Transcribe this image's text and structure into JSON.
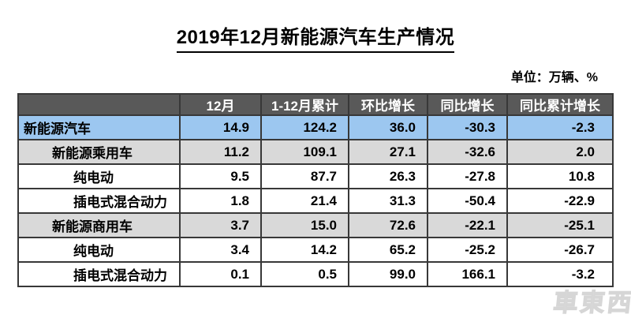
{
  "title": "2019年12月新能源汽车生产情况",
  "unit_label": "单位：万辆、%",
  "watermark": "車東西",
  "colors": {
    "header_bg": "#595959",
    "header_text": "#ffffff",
    "row_highlight_blue": "#9cc7f0",
    "row_highlight_gray": "#d9d9d9",
    "border": "#383838",
    "title_text": "#000000"
  },
  "chart_data": {
    "type": "table",
    "title": "2019年12月新能源汽车生产情况",
    "unit": "万辆、%",
    "columns": [
      "",
      "12月",
      "1-12月累计",
      "环比增长",
      "同比增长",
      "同比累计增长"
    ],
    "rows": [
      {
        "label": "新能源汽车",
        "indent": 0,
        "highlight": "blue",
        "values": [
          14.9,
          124.2,
          36.0,
          -30.3,
          -2.3
        ]
      },
      {
        "label": "新能源乘用车",
        "indent": 1,
        "highlight": "gray",
        "values": [
          11.2,
          109.1,
          27.1,
          -32.6,
          2.0
        ]
      },
      {
        "label": "纯电动",
        "indent": 2,
        "highlight": null,
        "values": [
          9.5,
          87.7,
          26.3,
          -27.8,
          10.8
        ]
      },
      {
        "label": "插电式混合动力",
        "indent": 2,
        "highlight": null,
        "values": [
          1.8,
          21.4,
          31.3,
          -50.4,
          -22.9
        ]
      },
      {
        "label": "新能源商用车",
        "indent": 1,
        "highlight": "gray",
        "values": [
          3.7,
          15.0,
          72.6,
          -22.1,
          -25.1
        ]
      },
      {
        "label": "纯电动",
        "indent": 2,
        "highlight": null,
        "values": [
          3.4,
          14.2,
          65.2,
          -25.2,
          -26.7
        ]
      },
      {
        "label": "插电式混合动力",
        "indent": 2,
        "highlight": null,
        "values": [
          0.1,
          0.5,
          99.0,
          166.1,
          -3.2
        ]
      }
    ]
  }
}
